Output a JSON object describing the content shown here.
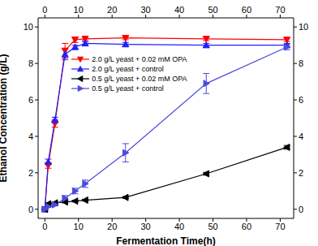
{
  "chart_data": {
    "type": "line",
    "x_label": "Fermentation Time(h)",
    "y_label": "Ethanol Concentration (g/L)",
    "x": [
      0,
      1,
      3,
      6,
      9,
      12,
      24,
      48,
      72
    ],
    "xlim": [
      -2,
      74
    ],
    "xticks": [
      0,
      10,
      20,
      30,
      40,
      50,
      60,
      70
    ],
    "ylim": [
      -0.5,
      10.5
    ],
    "yticks": [
      0,
      2,
      4,
      6,
      8,
      10
    ],
    "legend": "upper center",
    "series": [
      {
        "name": "2.0 g/L yeast + 0.02 mM OPA",
        "color": "#ff0000",
        "marker": "triangle-down",
        "values": [
          0,
          2.4,
          4.7,
          8.7,
          9.3,
          9.35,
          9.4,
          9.35,
          9.3
        ],
        "error": [
          0.05,
          0.15,
          0.2,
          0.4,
          0.15,
          0.1,
          0.1,
          0.1,
          0.1
        ]
      },
      {
        "name": "2.0 g/L yeast + control",
        "color": "#2020ff",
        "marker": "triangle-up",
        "values": [
          0,
          2.6,
          4.9,
          8.5,
          8.9,
          9.1,
          9.05,
          9.0,
          9.0
        ],
        "error": [
          0.05,
          0.15,
          0.15,
          0.3,
          0.1,
          0.1,
          0.1,
          0.1,
          0.1
        ]
      },
      {
        "name": "0.5 g/L yeast + 0.02 mM OPA",
        "color": "#000000",
        "marker": "triangle-left",
        "values": [
          0,
          0.3,
          0.35,
          0.4,
          0.45,
          0.5,
          0.65,
          1.95,
          3.4
        ],
        "error": [
          0.02,
          0.05,
          0.05,
          0.05,
          0.05,
          0.05,
          0.05,
          0.08,
          0.1
        ]
      },
      {
        "name": "0.5 g/L yeast + control",
        "color": "#4b4bdc",
        "marker": "triangle-right",
        "values": [
          0,
          0.15,
          0.25,
          0.6,
          1.0,
          1.4,
          3.1,
          6.9,
          8.9
        ],
        "error": [
          0.02,
          0.05,
          0.05,
          0.15,
          0.15,
          0.2,
          0.5,
          0.55,
          0.15
        ]
      }
    ]
  }
}
